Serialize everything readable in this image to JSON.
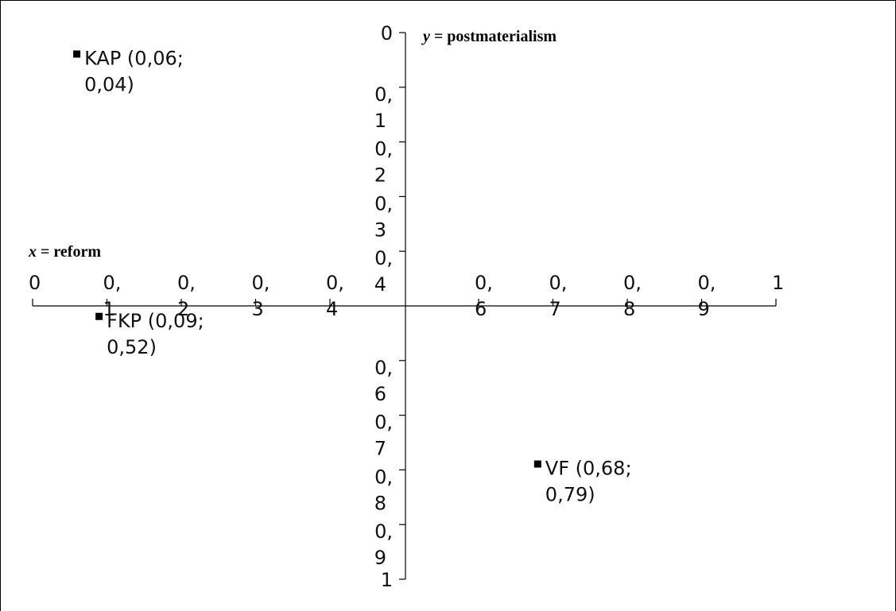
{
  "chart_data": {
    "type": "scatter",
    "title": "",
    "xlabel": {
      "var": "x",
      "rest": " = reform"
    },
    "ylabel": {
      "var": "y",
      "rest": " = postmaterialism"
    },
    "xlim": [
      0,
      1
    ],
    "ylim": [
      0,
      1
    ],
    "y_inverted": true,
    "grid": false,
    "legend": "none",
    "marker_color": "#000000",
    "x_ticks": [
      {
        "value": 0,
        "lines": [
          "0"
        ]
      },
      {
        "value": 0.1,
        "lines": [
          "0,",
          "1"
        ]
      },
      {
        "value": 0.2,
        "lines": [
          "0,",
          "2"
        ]
      },
      {
        "value": 0.3,
        "lines": [
          "0,",
          "3"
        ]
      },
      {
        "value": 0.4,
        "lines": [
          "0,",
          "4"
        ]
      },
      {
        "value": 0.6,
        "lines": [
          "0,",
          "6"
        ]
      },
      {
        "value": 0.7,
        "lines": [
          "0,",
          "7"
        ]
      },
      {
        "value": 0.8,
        "lines": [
          "0,",
          "8"
        ]
      },
      {
        "value": 0.9,
        "lines": [
          "0,",
          "9"
        ]
      },
      {
        "value": 1,
        "lines": [
          "1"
        ]
      }
    ],
    "y_ticks": [
      {
        "value": 0,
        "lines": [
          "0"
        ]
      },
      {
        "value": 0.1,
        "lines": [
          "0,",
          "1"
        ]
      },
      {
        "value": 0.2,
        "lines": [
          "0,",
          "2"
        ]
      },
      {
        "value": 0.3,
        "lines": [
          "0,",
          "3"
        ]
      },
      {
        "value": 0.4,
        "lines": [
          "0,",
          "4"
        ]
      },
      {
        "value": 0.6,
        "lines": [
          "0,",
          "6"
        ]
      },
      {
        "value": 0.7,
        "lines": [
          "0,",
          "7"
        ]
      },
      {
        "value": 0.8,
        "lines": [
          "0,",
          "8"
        ]
      },
      {
        "value": 0.9,
        "lines": [
          "0,",
          "9"
        ]
      },
      {
        "value": 1,
        "lines": [
          "1"
        ]
      }
    ],
    "points": [
      {
        "x": 0.06,
        "y": 0.04,
        "label_lines": [
          "KAP (0,06;",
          "0,04)"
        ]
      },
      {
        "x": 0.09,
        "y": 0.52,
        "label_lines": [
          "FKP (0,09;",
          "0,52)"
        ]
      },
      {
        "x": 0.68,
        "y": 0.79,
        "label_lines": [
          "VF (0,68;",
          "0,79)"
        ]
      }
    ]
  }
}
